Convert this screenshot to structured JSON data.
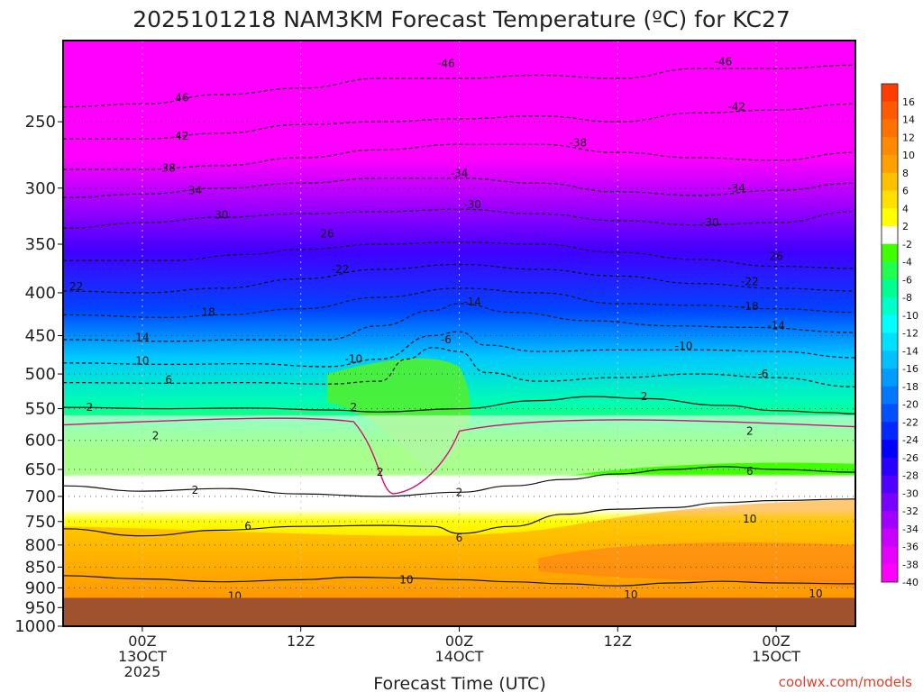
{
  "chart_data": {
    "type": "heatmap",
    "title": "2025101218 NAM3KM Forecast Temperature (ºC) for KC27",
    "xlabel": "Forecast Time (UTC)",
    "ylabel": "",
    "credit": "coolwx.com/models",
    "time_range_hours": [
      -6,
      54
    ],
    "pressure_range_hpa": [
      1000,
      200
    ],
    "y_ticks": [
      "250",
      "300",
      "350",
      "400",
      "450",
      "500",
      "550",
      "600",
      "650",
      "700",
      "750",
      "800",
      "850",
      "900",
      "950",
      "1000"
    ],
    "x_ticks": [
      {
        "t": 0,
        "lines": [
          "00Z",
          "13OCT",
          "2025"
        ]
      },
      {
        "t": 12,
        "lines": [
          "12Z"
        ]
      },
      {
        "t": 24,
        "lines": [
          "00Z",
          "14OCT"
        ]
      },
      {
        "t": 36,
        "lines": [
          "12Z"
        ]
      },
      {
        "t": 48,
        "lines": [
          "00Z",
          "15OCT"
        ]
      }
    ],
    "ground_pressure_hpa": 925,
    "colorbar_labels": [
      "16",
      "14",
      "12",
      "10",
      "8",
      "6",
      "4",
      "2",
      "-2",
      "-4",
      "-6",
      "-8",
      "-10",
      "-12",
      "-14",
      "-16",
      "-18",
      "-20",
      "-22",
      "-24",
      "-26",
      "-28",
      "-30",
      "-32",
      "-34",
      "-36",
      "-38",
      "-40"
    ],
    "contours": [
      {
        "value": 10,
        "label": "10",
        "style": "solid",
        "points": [
          [
            -6,
            870
          ],
          [
            0,
            878
          ],
          [
            6,
            885
          ],
          [
            12,
            880
          ],
          [
            16,
            874
          ],
          [
            20,
            876
          ],
          [
            24,
            880
          ],
          [
            28,
            885
          ],
          [
            32,
            890
          ],
          [
            36,
            895
          ],
          [
            40,
            888
          ],
          [
            44,
            884
          ],
          [
            48,
            888
          ],
          [
            54,
            890
          ]
        ]
      },
      {
        "value": 6,
        "label": "6",
        "style": "solid",
        "points": [
          [
            -6,
            765
          ],
          [
            0,
            780
          ],
          [
            6,
            768
          ],
          [
            12,
            760
          ],
          [
            18,
            758
          ],
          [
            22,
            760
          ],
          [
            24,
            775
          ],
          [
            28,
            760
          ],
          [
            32,
            735
          ],
          [
            36,
            725
          ],
          [
            40,
            722
          ],
          [
            44,
            712
          ],
          [
            48,
            708
          ],
          [
            54,
            705
          ]
        ]
      },
      {
        "value": 2,
        "label": "2",
        "style": "solid",
        "points": [
          [
            -6,
            680
          ],
          [
            0,
            690
          ],
          [
            6,
            685
          ],
          [
            12,
            695
          ],
          [
            18,
            700
          ],
          [
            24,
            692
          ],
          [
            28,
            680
          ],
          [
            32,
            668
          ],
          [
            36,
            658
          ],
          [
            40,
            650
          ],
          [
            44,
            645
          ],
          [
            48,
            650
          ],
          [
            54,
            655
          ]
        ]
      },
      {
        "value": 2,
        "label": "2",
        "style": "solid",
        "points": [
          [
            -6,
            548
          ],
          [
            2,
            550
          ],
          [
            8,
            549
          ],
          [
            14,
            552
          ],
          [
            18,
            555
          ],
          [
            24,
            550
          ],
          [
            30,
            538
          ],
          [
            34,
            532
          ],
          [
            38,
            535
          ],
          [
            44,
            545
          ],
          [
            48,
            553
          ],
          [
            52,
            556
          ],
          [
            54,
            558
          ]
        ]
      },
      {
        "value": -6,
        "label": "6",
        "style": "dashed",
        "points": [
          [
            -6,
            512
          ],
          [
            2,
            513
          ],
          [
            8,
            512
          ],
          [
            14,
            514
          ],
          [
            18,
            510
          ],
          [
            20,
            480
          ],
          [
            22,
            465
          ],
          [
            24,
            470
          ],
          [
            26,
            498
          ],
          [
            30,
            510
          ],
          [
            36,
            505
          ],
          [
            42,
            500
          ],
          [
            48,
            505
          ],
          [
            54,
            518
          ]
        ]
      },
      {
        "value": -10,
        "label": "10",
        "style": "dashed",
        "points": [
          [
            -6,
            485
          ],
          [
            2,
            487
          ],
          [
            8,
            486
          ],
          [
            14,
            490
          ],
          [
            18,
            480
          ],
          [
            22,
            450
          ],
          [
            24,
            445
          ],
          [
            26,
            462
          ],
          [
            30,
            470
          ],
          [
            36,
            468
          ],
          [
            42,
            468
          ],
          [
            48,
            470
          ],
          [
            54,
            478
          ]
        ]
      },
      {
        "value": -14,
        "label": "14",
        "style": "dashed",
        "points": [
          [
            -6,
            455
          ],
          [
            2,
            457
          ],
          [
            8,
            455
          ],
          [
            14,
            455
          ],
          [
            18,
            438
          ],
          [
            22,
            420
          ],
          [
            24,
            412
          ],
          [
            28,
            422
          ],
          [
            34,
            432
          ],
          [
            40,
            438
          ],
          [
            46,
            440
          ],
          [
            54,
            446
          ]
        ]
      },
      {
        "value": -18,
        "label": "18",
        "style": "dashed",
        "points": [
          [
            -6,
            425
          ],
          [
            2,
            428
          ],
          [
            6,
            425
          ],
          [
            12,
            418
          ],
          [
            18,
            405
          ],
          [
            24,
            395
          ],
          [
            30,
            400
          ],
          [
            36,
            412
          ],
          [
            42,
            414
          ],
          [
            48,
            418
          ],
          [
            54,
            422
          ]
        ]
      },
      {
        "value": -22,
        "label": "22",
        "style": "dashed",
        "points": [
          [
            -6,
            398
          ],
          [
            0,
            400
          ],
          [
            6,
            395
          ],
          [
            12,
            385
          ],
          [
            18,
            375
          ],
          [
            24,
            370
          ],
          [
            30,
            375
          ],
          [
            36,
            382
          ],
          [
            42,
            390
          ],
          [
            48,
            395
          ],
          [
            54,
            398
          ]
        ]
      },
      {
        "value": -26,
        "label": "26",
        "style": "dashed",
        "points": [
          [
            -6,
            366
          ],
          [
            2,
            366
          ],
          [
            8,
            360
          ],
          [
            12,
            355
          ],
          [
            18,
            350
          ],
          [
            24,
            348
          ],
          [
            30,
            350
          ],
          [
            36,
            358
          ],
          [
            42,
            365
          ],
          [
            48,
            372
          ],
          [
            54,
            374
          ]
        ]
      },
      {
        "value": -30,
        "label": "30",
        "style": "dashed",
        "points": [
          [
            -6,
            335
          ],
          [
            0,
            330
          ],
          [
            6,
            325
          ],
          [
            12,
            322
          ],
          [
            18,
            320
          ],
          [
            24,
            318
          ],
          [
            30,
            322
          ],
          [
            36,
            328
          ],
          [
            42,
            332
          ],
          [
            48,
            330
          ],
          [
            54,
            320
          ]
        ]
      },
      {
        "value": -34,
        "label": "34",
        "style": "dashed",
        "points": [
          [
            -6,
            308
          ],
          [
            0,
            305
          ],
          [
            6,
            300
          ],
          [
            12,
            296
          ],
          [
            18,
            292
          ],
          [
            24,
            292
          ],
          [
            30,
            296
          ],
          [
            36,
            303
          ],
          [
            42,
            306
          ],
          [
            48,
            302
          ],
          [
            54,
            296
          ]
        ]
      },
      {
        "value": -38,
        "label": "38",
        "style": "dashed",
        "points": [
          [
            -6,
            285
          ],
          [
            0,
            285
          ],
          [
            6,
            282
          ],
          [
            12,
            276
          ],
          [
            18,
            270
          ],
          [
            24,
            266
          ],
          [
            30,
            266
          ],
          [
            36,
            272
          ],
          [
            42,
            276
          ],
          [
            48,
            278
          ],
          [
            54,
            272
          ]
        ]
      },
      {
        "value": -42,
        "label": "42",
        "style": "dashed",
        "points": [
          [
            -6,
            262
          ],
          [
            0,
            262
          ],
          [
            6,
            258
          ],
          [
            12,
            252
          ],
          [
            18,
            250
          ],
          [
            24,
            248
          ],
          [
            30,
            246
          ],
          [
            36,
            250
          ],
          [
            42,
            244
          ],
          [
            48,
            242
          ],
          [
            54,
            238
          ]
        ]
      },
      {
        "value": -46,
        "label": "46",
        "style": "dashed",
        "points": [
          [
            -6,
            240
          ],
          [
            0,
            238
          ],
          [
            6,
            232
          ],
          [
            12,
            228
          ],
          [
            18,
            222
          ],
          [
            24,
            222
          ],
          [
            30,
            220
          ],
          [
            36,
            222
          ],
          [
            42,
            216
          ],
          [
            48,
            216
          ],
          [
            54,
            214
          ]
        ]
      }
    ],
    "inline_labels": [
      {
        "text": "-46",
        "t": 23,
        "p": 213
      },
      {
        "text": "-46",
        "t": 44,
        "p": 212
      },
      {
        "text": "46",
        "t": 3,
        "p": 234
      },
      {
        "text": "-42",
        "t": 45,
        "p": 240
      },
      {
        "text": "42",
        "t": 3,
        "p": 260
      },
      {
        "text": "-38",
        "t": 33,
        "p": 265
      },
      {
        "text": "38",
        "t": 2,
        "p": 284
      },
      {
        "text": "-34",
        "t": 24,
        "p": 288
      },
      {
        "text": "-34",
        "t": 45,
        "p": 300
      },
      {
        "text": "34",
        "t": 4,
        "p": 302
      },
      {
        "text": "-30",
        "t": 25,
        "p": 314
      },
      {
        "text": "-30",
        "t": 43,
        "p": 330
      },
      {
        "text": "30",
        "t": 6,
        "p": 323
      },
      {
        "text": "26",
        "t": 14,
        "p": 340
      },
      {
        "text": "26",
        "t": 48,
        "p": 362
      },
      {
        "text": "-22",
        "t": 15,
        "p": 375
      },
      {
        "text": "-22",
        "t": 46,
        "p": 388
      },
      {
        "text": "22",
        "t": -5,
        "p": 393
      },
      {
        "text": "-14",
        "t": 25,
        "p": 410
      },
      {
        "text": "-18",
        "t": 46,
        "p": 415
      },
      {
        "text": "18",
        "t": 5,
        "p": 422
      },
      {
        "text": "-14",
        "t": 48,
        "p": 438
      },
      {
        "text": "14",
        "t": 0,
        "p": 452
      },
      {
        "text": "-6",
        "t": 23,
        "p": 455
      },
      {
        "text": "-10",
        "t": 41,
        "p": 463
      },
      {
        "text": "-10",
        "t": 16,
        "p": 480
      },
      {
        "text": "10",
        "t": 0,
        "p": 482
      },
      {
        "text": "-6",
        "t": 47,
        "p": 500
      },
      {
        "text": "6",
        "t": 2,
        "p": 508
      },
      {
        "text": "2",
        "t": 16,
        "p": 548
      },
      {
        "text": "2",
        "t": 38,
        "p": 532
      },
      {
        "text": "2",
        "t": -4,
        "p": 548
      },
      {
        "text": "2",
        "t": 1,
        "p": 592
      },
      {
        "text": "2",
        "t": 46,
        "p": 585
      },
      {
        "text": "2",
        "t": 18,
        "p": 655
      },
      {
        "text": "6",
        "t": 46,
        "p": 653
      },
      {
        "text": "2",
        "t": 4,
        "p": 688
      },
      {
        "text": "2",
        "t": 24,
        "p": 692
      },
      {
        "text": "10",
        "t": 46,
        "p": 745
      },
      {
        "text": "6",
        "t": 8,
        "p": 760
      },
      {
        "text": "6",
        "t": 24,
        "p": 785
      },
      {
        "text": "10",
        "t": 20,
        "p": 880
      },
      {
        "text": "10",
        "t": 7,
        "p": 920
      },
      {
        "text": "10",
        "t": 37,
        "p": 917
      },
      {
        "text": "10",
        "t": 51,
        "p": 915
      }
    ]
  }
}
